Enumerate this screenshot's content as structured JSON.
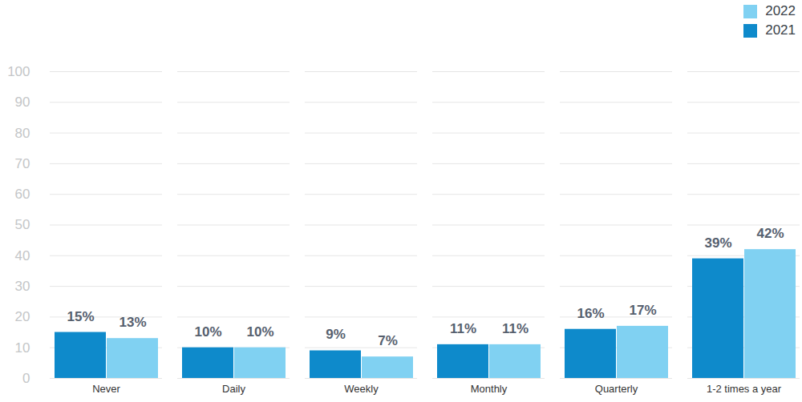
{
  "chart_data": {
    "type": "bar",
    "categories": [
      "Never",
      "Daily",
      "Weekly",
      "Monthly",
      "Quarterly",
      "1-2 times a year"
    ],
    "series": [
      {
        "name": "2021",
        "color": "#0e8acb",
        "values": [
          15,
          10,
          9,
          11,
          16,
          39
        ],
        "value_labels": [
          "15%",
          "10%",
          "9%",
          "11%",
          "16%",
          "39%"
        ]
      },
      {
        "name": "2022",
        "color": "#80d1f2",
        "values": [
          13,
          10,
          7,
          11,
          17,
          42
        ],
        "value_labels": [
          "13%",
          "10%",
          "7%",
          "11%",
          "17%",
          "42%"
        ]
      }
    ],
    "ylim": [
      0,
      100
    ],
    "yticks": [
      0,
      10,
      20,
      30,
      40,
      50,
      60,
      70,
      80,
      90,
      100
    ],
    "grid": true,
    "legend": "top-right",
    "data_labels": true
  }
}
